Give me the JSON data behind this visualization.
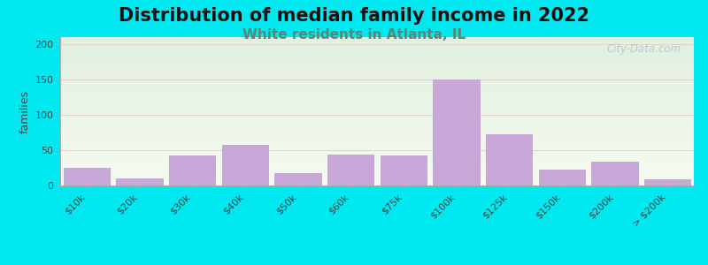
{
  "title": "Distribution of median family income in 2022",
  "subtitle": "White residents in Atlanta, IL",
  "ylabel": "families",
  "categories": [
    "$10k",
    "$20k",
    "$30k",
    "$40k",
    "$50k",
    "$60k",
    "$75k",
    "$100k",
    "$125k",
    "$150k",
    "$200k",
    "> $200k"
  ],
  "values": [
    25,
    10,
    42,
    57,
    18,
    44,
    43,
    150,
    73,
    22,
    34,
    9
  ],
  "bar_color": "#c8a8d8",
  "bar_edgecolor": "#b898cc",
  "ylim": [
    0,
    210
  ],
  "yticks": [
    0,
    50,
    100,
    150,
    200
  ],
  "outer_background": "#00e8f0",
  "title_fontsize": 15,
  "subtitle_fontsize": 11,
  "subtitle_color": "#558877",
  "ylabel_fontsize": 9,
  "watermark": "City-Data.com",
  "grid_color": "#ddc8cc",
  "grid_alpha": 0.8
}
